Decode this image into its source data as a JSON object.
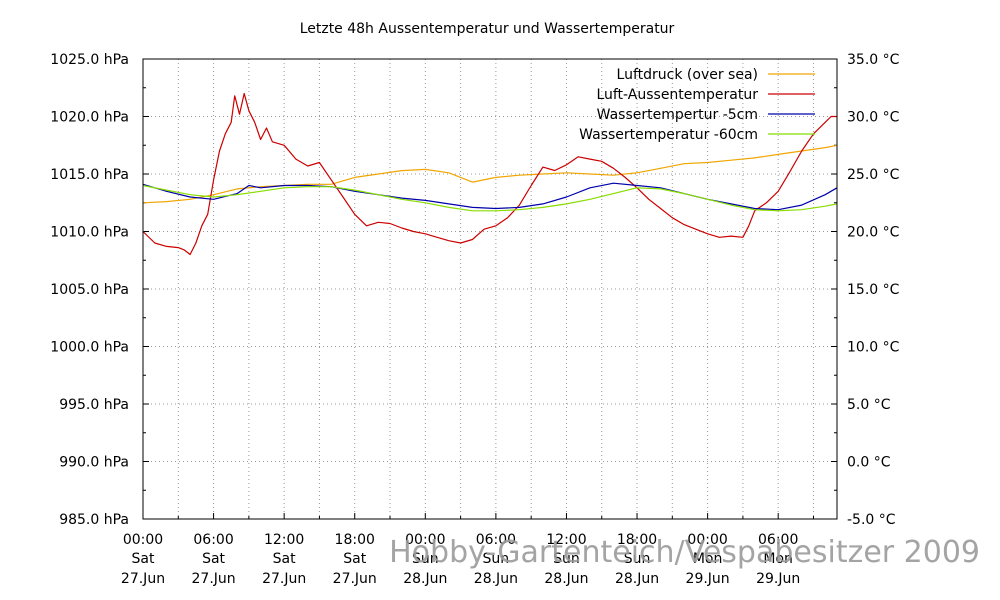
{
  "chart_data": {
    "type": "line",
    "title": "Letzte 48h Aussentemperatur und Wassertemperatur",
    "watermark": "Hobby-Gartenteich/Vespabesitzer 2009",
    "grid": true,
    "legend_position": "top-right",
    "x_ticks": [
      {
        "hours": 0,
        "time": "00:00",
        "day": "Sat",
        "date": "27.Jun"
      },
      {
        "hours": 6,
        "time": "06:00",
        "day": "Sat",
        "date": "27.Jun"
      },
      {
        "hours": 12,
        "time": "12:00",
        "day": "Sat",
        "date": "27.Jun"
      },
      {
        "hours": 18,
        "time": "18:00",
        "day": "Sat",
        "date": "27.Jun"
      },
      {
        "hours": 24,
        "time": "00:00",
        "day": "Sun",
        "date": "28.Jun"
      },
      {
        "hours": 30,
        "time": "06:00",
        "day": "Sun",
        "date": "28.Jun"
      },
      {
        "hours": 36,
        "time": "12:00",
        "day": "Sun",
        "date": "28.Jun"
      },
      {
        "hours": 42,
        "time": "18:00",
        "day": "Sun",
        "date": "28.Jun"
      },
      {
        "hours": 48,
        "time": "00:00",
        "day": "Mon",
        "date": "29.Jun"
      },
      {
        "hours": 54,
        "time": "06:00",
        "day": "Mon",
        "date": "29.Jun"
      }
    ],
    "xlim": [
      0,
      59
    ],
    "y_left": {
      "unit": "hPa",
      "lim": [
        985,
        1025
      ],
      "ticks": [
        "1025.0 hPa",
        "1020.0 hPa",
        "1015.0 hPa",
        "1010.0 hPa",
        "1005.0 hPa",
        "1000.0 hPa",
        "995.0 hPa",
        "990.0 hPa",
        "985.0 hPa"
      ],
      "tick_values": [
        1025,
        1020,
        1015,
        1010,
        1005,
        1000,
        995,
        990,
        985
      ]
    },
    "y_right": {
      "unit": "°C",
      "lim": [
        -5,
        35
      ],
      "ticks": [
        "35.0 °C",
        "30.0 °C",
        "25.0 °C",
        "20.0 °C",
        "15.0 °C",
        "10.0 °C",
        "5.0 °C",
        "0.0 °C",
        "-5.0 °C"
      ],
      "tick_values": [
        35,
        30,
        25,
        20,
        15,
        10,
        5,
        0,
        -5
      ]
    },
    "series": [
      {
        "name": "Luftdruck (over sea)",
        "axis": "left",
        "color": "#f0a500",
        "points": [
          [
            0,
            1012.5
          ],
          [
            2,
            1012.6
          ],
          [
            4,
            1012.8
          ],
          [
            6,
            1013.2
          ],
          [
            8,
            1013.7
          ],
          [
            10,
            1013.9
          ],
          [
            12,
            1014.0
          ],
          [
            14,
            1014.1
          ],
          [
            16,
            1014.1
          ],
          [
            18,
            1014.7
          ],
          [
            20,
            1015.0
          ],
          [
            22,
            1015.3
          ],
          [
            24,
            1015.4
          ],
          [
            26,
            1015.1
          ],
          [
            28,
            1014.3
          ],
          [
            30,
            1014.7
          ],
          [
            32,
            1014.9
          ],
          [
            34,
            1015.0
          ],
          [
            36,
            1015.1
          ],
          [
            38,
            1015.0
          ],
          [
            40,
            1014.9
          ],
          [
            42,
            1015.1
          ],
          [
            44,
            1015.5
          ],
          [
            46,
            1015.9
          ],
          [
            48,
            1016.0
          ],
          [
            50,
            1016.2
          ],
          [
            52,
            1016.4
          ],
          [
            54,
            1016.7
          ],
          [
            56,
            1017.0
          ],
          [
            58,
            1017.3
          ],
          [
            59,
            1017.5
          ]
        ]
      },
      {
        "name": "Luft-Aussentemperatur",
        "axis": "right",
        "color": "#cc0000",
        "points": [
          [
            0,
            20.0
          ],
          [
            1,
            19.0
          ],
          [
            2,
            18.7
          ],
          [
            3,
            18.6
          ],
          [
            3.5,
            18.4
          ],
          [
            4,
            18.0
          ],
          [
            4.5,
            19.0
          ],
          [
            5,
            20.5
          ],
          [
            5.5,
            21.5
          ],
          [
            6,
            24.5
          ],
          [
            6.5,
            27.0
          ],
          [
            7,
            28.5
          ],
          [
            7.5,
            29.5
          ],
          [
            7.8,
            31.8
          ],
          [
            8.2,
            30.2
          ],
          [
            8.6,
            32.0
          ],
          [
            9,
            30.5
          ],
          [
            9.5,
            29.5
          ],
          [
            10,
            28.0
          ],
          [
            10.5,
            29.0
          ],
          [
            11,
            27.8
          ],
          [
            12,
            27.5
          ],
          [
            13,
            26.3
          ],
          [
            14,
            25.7
          ],
          [
            15,
            26.0
          ],
          [
            16,
            24.5
          ],
          [
            17,
            23.0
          ],
          [
            18,
            21.5
          ],
          [
            19,
            20.5
          ],
          [
            20,
            20.8
          ],
          [
            21,
            20.7
          ],
          [
            22,
            20.3
          ],
          [
            23,
            20.0
          ],
          [
            24,
            19.8
          ],
          [
            25,
            19.5
          ],
          [
            26,
            19.2
          ],
          [
            27,
            19.0
          ],
          [
            28,
            19.3
          ],
          [
            29,
            20.2
          ],
          [
            30,
            20.5
          ],
          [
            31,
            21.2
          ],
          [
            32,
            22.3
          ],
          [
            33,
            24.0
          ],
          [
            34,
            25.6
          ],
          [
            35,
            25.3
          ],
          [
            36,
            25.8
          ],
          [
            37,
            26.5
          ],
          [
            38,
            26.3
          ],
          [
            39,
            26.1
          ],
          [
            40,
            25.5
          ],
          [
            41,
            24.7
          ],
          [
            42,
            23.8
          ],
          [
            43,
            22.8
          ],
          [
            44,
            22.0
          ],
          [
            45,
            21.2
          ],
          [
            46,
            20.6
          ],
          [
            47,
            20.2
          ],
          [
            48,
            19.8
          ],
          [
            49,
            19.5
          ],
          [
            50,
            19.6
          ],
          [
            51,
            19.5
          ],
          [
            51.5,
            20.5
          ],
          [
            52,
            21.8
          ],
          [
            53,
            22.5
          ],
          [
            54,
            23.5
          ],
          [
            55,
            25.2
          ],
          [
            56,
            27.0
          ],
          [
            57,
            28.5
          ],
          [
            58,
            29.5
          ],
          [
            58.5,
            30.0
          ],
          [
            59,
            30.0
          ]
        ]
      },
      {
        "name": "Wassertempertur -5cm",
        "axis": "right",
        "color": "#0000aa",
        "points": [
          [
            0,
            24.1
          ],
          [
            2,
            23.5
          ],
          [
            4,
            23.0
          ],
          [
            6,
            22.8
          ],
          [
            8,
            23.3
          ],
          [
            9,
            24.0
          ],
          [
            10,
            23.8
          ],
          [
            12,
            24.0
          ],
          [
            14,
            24.0
          ],
          [
            16,
            23.9
          ],
          [
            18,
            23.5
          ],
          [
            20,
            23.2
          ],
          [
            22,
            22.9
          ],
          [
            24,
            22.7
          ],
          [
            26,
            22.4
          ],
          [
            28,
            22.1
          ],
          [
            30,
            22.0
          ],
          [
            32,
            22.1
          ],
          [
            34,
            22.4
          ],
          [
            36,
            23.0
          ],
          [
            38,
            23.8
          ],
          [
            40,
            24.2
          ],
          [
            42,
            24.0
          ],
          [
            44,
            23.8
          ],
          [
            46,
            23.3
          ],
          [
            48,
            22.8
          ],
          [
            50,
            22.4
          ],
          [
            52,
            22.0
          ],
          [
            54,
            21.9
          ],
          [
            56,
            22.3
          ],
          [
            58,
            23.2
          ],
          [
            59,
            23.8
          ]
        ]
      },
      {
        "name": "Wassertemperatur -60cm",
        "axis": "right",
        "color": "#88dd00",
        "points": [
          [
            0,
            24.0
          ],
          [
            2,
            23.6
          ],
          [
            4,
            23.2
          ],
          [
            6,
            23.0
          ],
          [
            8,
            23.2
          ],
          [
            10,
            23.5
          ],
          [
            12,
            23.8
          ],
          [
            14,
            23.9
          ],
          [
            16,
            23.9
          ],
          [
            18,
            23.6
          ],
          [
            20,
            23.2
          ],
          [
            22,
            22.8
          ],
          [
            24,
            22.5
          ],
          [
            26,
            22.1
          ],
          [
            28,
            21.8
          ],
          [
            30,
            21.8
          ],
          [
            32,
            21.9
          ],
          [
            34,
            22.1
          ],
          [
            36,
            22.4
          ],
          [
            38,
            22.8
          ],
          [
            40,
            23.3
          ],
          [
            42,
            23.8
          ],
          [
            44,
            23.7
          ],
          [
            46,
            23.3
          ],
          [
            48,
            22.8
          ],
          [
            50,
            22.3
          ],
          [
            52,
            21.9
          ],
          [
            54,
            21.8
          ],
          [
            56,
            21.9
          ],
          [
            58,
            22.2
          ],
          [
            59,
            22.4
          ]
        ]
      }
    ]
  }
}
